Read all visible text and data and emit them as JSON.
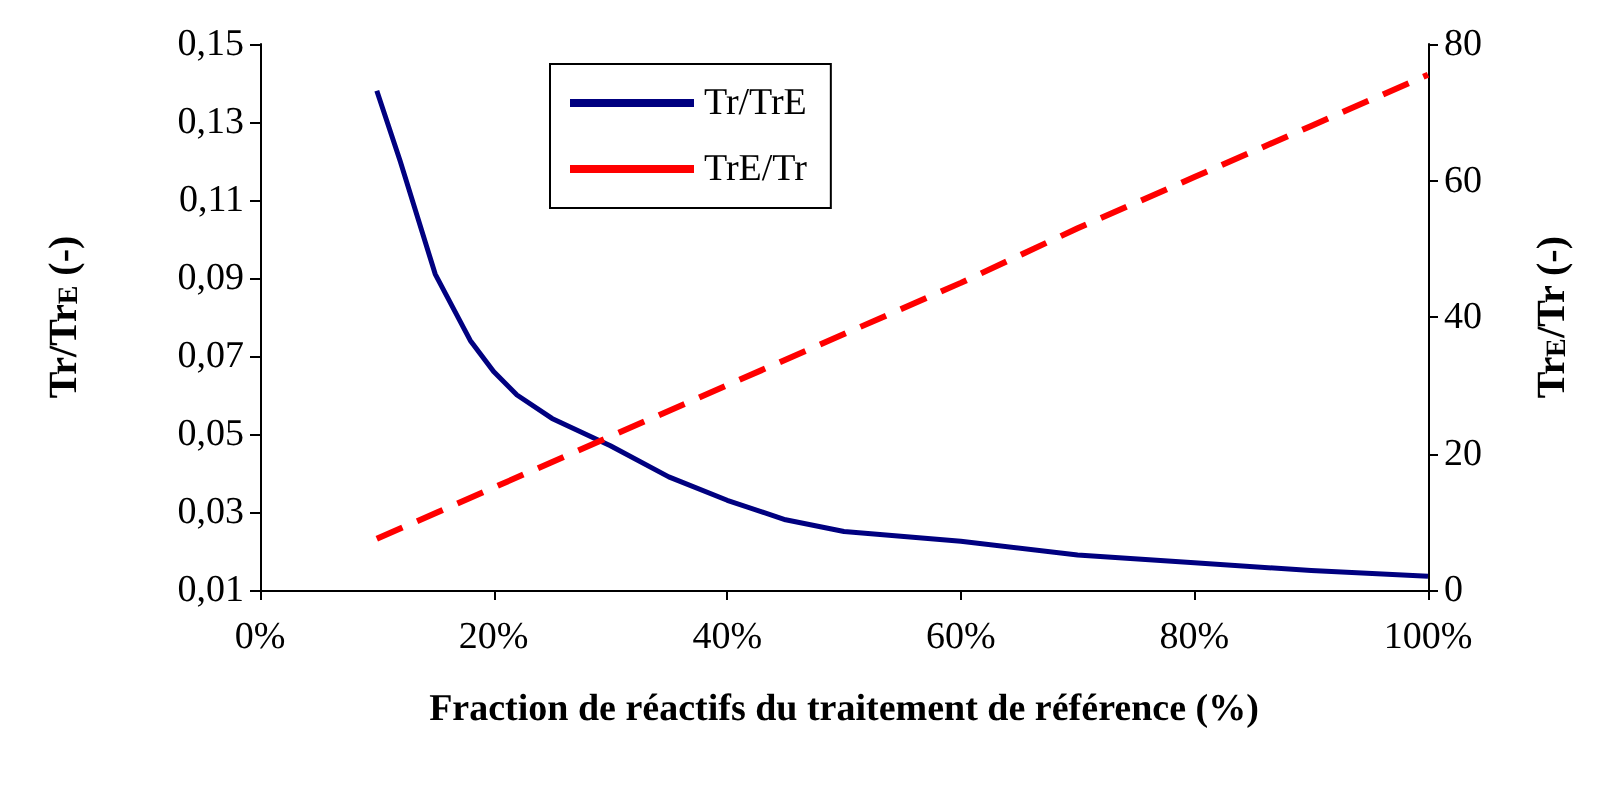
{
  "chart_data": {
    "type": "line",
    "xlabel": "Fraction de réactifs du traitement de référence (%)",
    "ylabel": "Tr/Tr$_{E}$ (-)",
    "y2label": "Tr$_{E}$/Tr (-)",
    "xlim": [
      0,
      100
    ],
    "xticks": [
      {
        "value": 0,
        "label": "0%"
      },
      {
        "value": 20,
        "label": "20%"
      },
      {
        "value": 40,
        "label": "40%"
      },
      {
        "value": 60,
        "label": "60%"
      },
      {
        "value": 80,
        "label": "80%"
      },
      {
        "value": 100,
        "label": "100%"
      }
    ],
    "ylim": [
      0.01,
      0.15
    ],
    "yticks": [
      {
        "value": 0.01,
        "label": "0,01"
      },
      {
        "value": 0.03,
        "label": "0,03"
      },
      {
        "value": 0.05,
        "label": "0,05"
      },
      {
        "value": 0.07,
        "label": "0,07"
      },
      {
        "value": 0.09,
        "label": "0,09"
      },
      {
        "value": 0.11,
        "label": "0,11"
      },
      {
        "value": 0.13,
        "label": "0,13"
      },
      {
        "value": 0.15,
        "label": "0,15"
      }
    ],
    "y2lim": [
      0,
      80
    ],
    "y2ticks": [
      0,
      20,
      40,
      60,
      80
    ],
    "grid": false,
    "legend": "top",
    "marker": "none",
    "series": [
      {
        "name": "Tr/TrE",
        "color": "#000080",
        "line_style": "solid",
        "x": [
          10,
          12,
          15,
          18,
          20,
          22,
          25,
          30,
          35,
          40,
          45,
          50,
          60,
          70,
          80,
          90,
          100
        ],
        "values": [
          0.138,
          0.12,
          0.091,
          0.074,
          0.066,
          0.06,
          0.054,
          0.047,
          0.039,
          0.033,
          0.028,
          0.025,
          0.0225,
          0.019,
          0.017,
          0.015,
          0.0135
        ]
      },
      {
        "name": "TrE/Tr",
        "color": "#ff0000",
        "line_style": "dashed",
        "axis": "y2",
        "x": [
          10,
          20,
          30,
          40,
          50,
          60,
          70,
          80,
          90,
          100
        ],
        "values": [
          7.5,
          15,
          22.5,
          30,
          37.5,
          45,
          53,
          60.5,
          68,
          75.5
        ]
      }
    ]
  }
}
